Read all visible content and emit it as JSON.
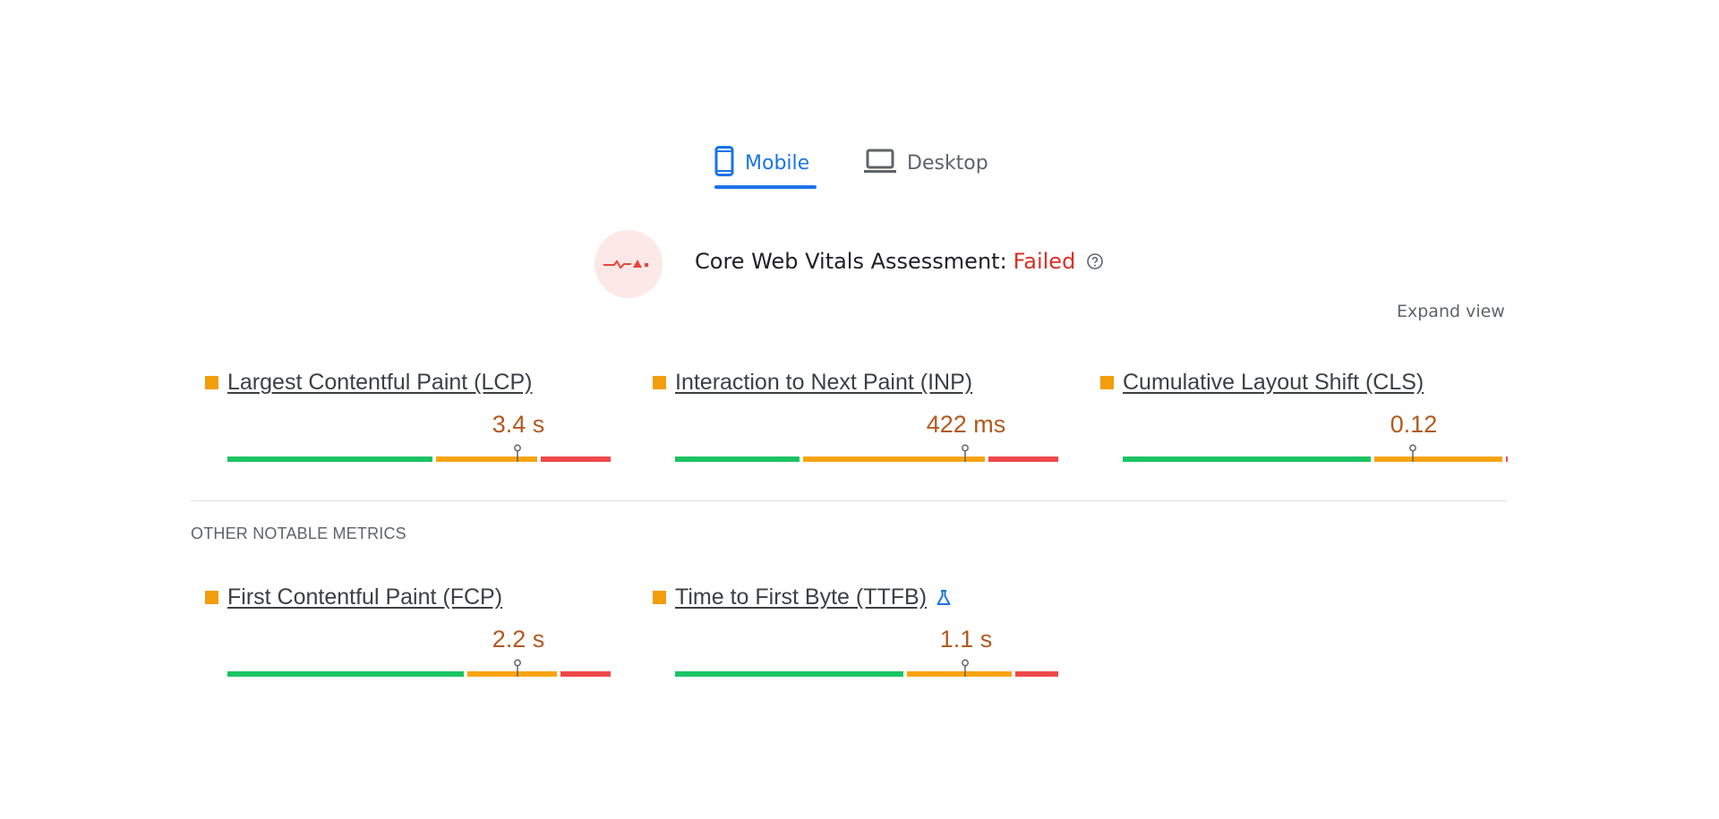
{
  "tabs": [
    {
      "label": "Mobile",
      "icon": "smartphone-icon",
      "selected": true
    },
    {
      "label": "Desktop",
      "icon": "laptop-icon",
      "selected": false
    }
  ],
  "assessment": {
    "title": "Core Web Vitals Assessment:",
    "status": "Failed",
    "status_color": "#d93025",
    "icon": "vitals-failed-icon"
  },
  "expand_view": "Expand view",
  "core_metrics": [
    {
      "name": "Largest Contentful Paint (LCP)",
      "value": "3.4 s",
      "rating": "needs-improvement",
      "segments": [
        0.54,
        0.27,
        0.19
      ],
      "marker": 0.75
    },
    {
      "name": "Interaction to Next Paint (INP)",
      "value": "422 ms",
      "rating": "needs-improvement",
      "segments": [
        0.33,
        0.48,
        0.19
      ],
      "marker": 0.75
    },
    {
      "name": "Cumulative Layout Shift (CLS)",
      "value": "0.12",
      "rating": "needs-improvement",
      "segments": [
        0.65,
        0.34,
        0.01
      ],
      "marker": 0.75
    }
  ],
  "other_metrics_heading": "OTHER NOTABLE METRICS",
  "other_metrics": [
    {
      "name": "First Contentful Paint (FCP)",
      "value": "2.2 s",
      "rating": "needs-improvement",
      "segments": [
        0.62,
        0.24,
        0.14
      ],
      "marker": 0.75,
      "experimental": false
    },
    {
      "name": "Time to First Byte (TTFB)",
      "value": "1.1 s",
      "rating": "needs-improvement",
      "segments": [
        0.6,
        0.28,
        0.12
      ],
      "marker": 0.75,
      "experimental": true
    }
  ],
  "colors": {
    "good": "#1bc464",
    "needs_improvement": "#f9a410",
    "poor": "#ef4848",
    "accent": "#1a73e8",
    "value_text": "#b2591e"
  }
}
